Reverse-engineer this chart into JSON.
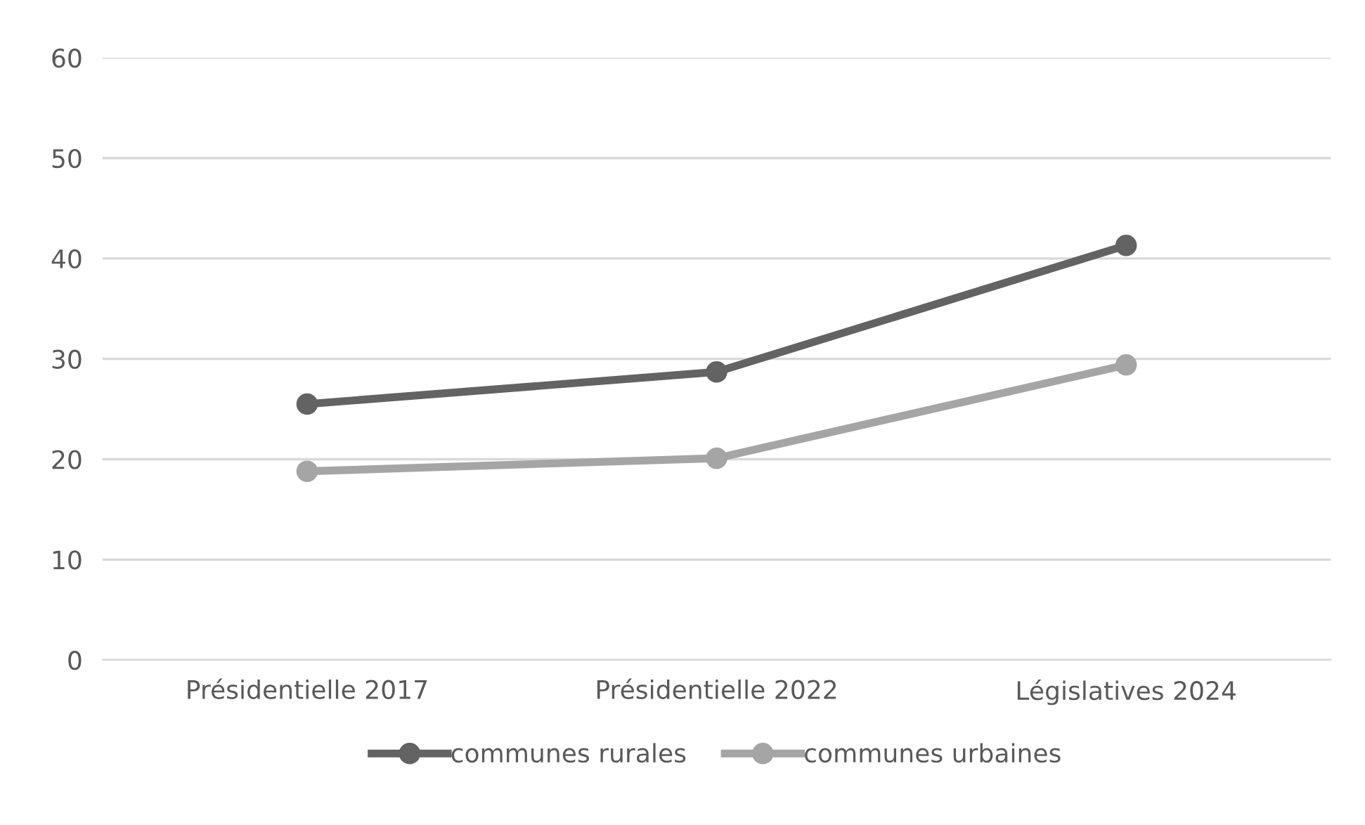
{
  "chart_data": {
    "type": "line",
    "categories": [
      "Présidentielle 2017",
      "Présidentielle 2022",
      "Législatives 2024"
    ],
    "series": [
      {
        "name": "communes rurales",
        "color": "#636363",
        "values": [
          25.5,
          28.7,
          41.3
        ]
      },
      {
        "name": "communes urbaines",
        "color": "#a5a5a5",
        "values": [
          18.8,
          20.1,
          29.4
        ]
      }
    ],
    "ylim": [
      0,
      60
    ],
    "yticks": [
      0,
      10,
      20,
      30,
      40,
      50,
      60
    ],
    "grid": "y",
    "legend": "bottom",
    "marker": "circle",
    "line_style": "solid"
  }
}
